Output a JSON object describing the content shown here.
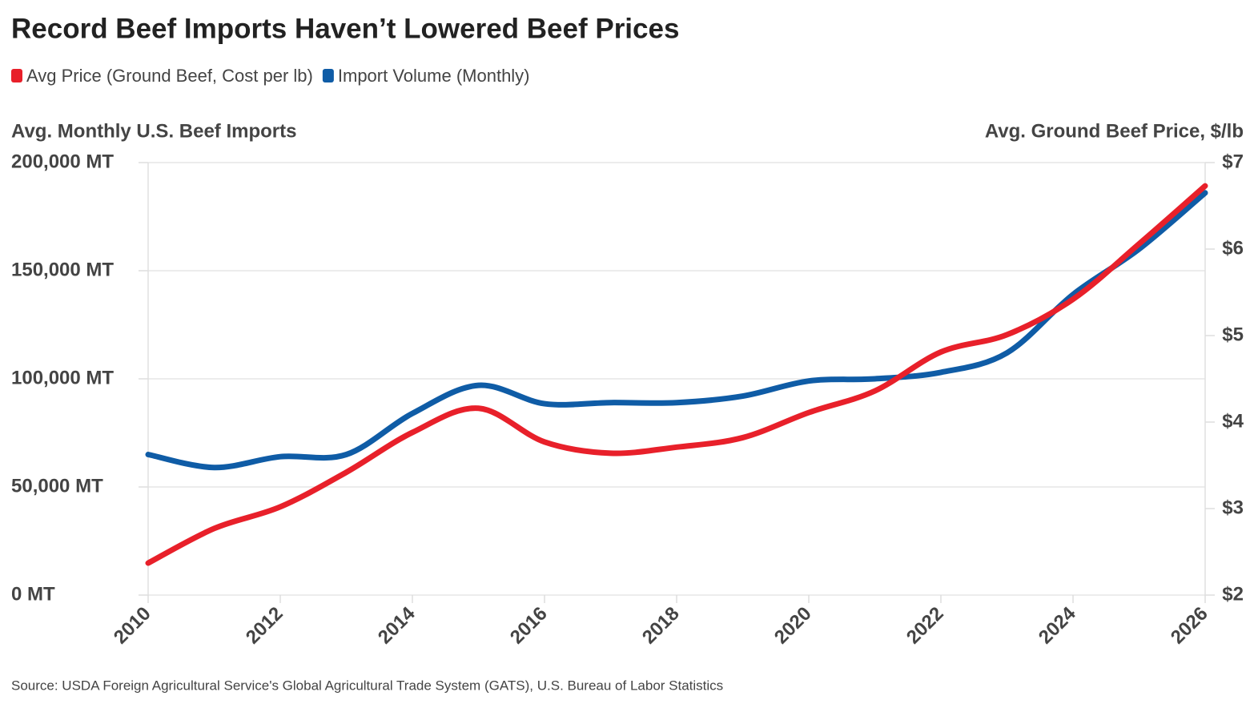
{
  "chart_data": {
    "type": "line",
    "title": "Record Beef Imports Haven’t Lowered Beef Prices",
    "y_label": "Avg. Monthly U.S. Beef Imports",
    "y2_label": "Avg. Ground Beef Price, $/lb",
    "source": "Source: USDA Foreign Agricultural Service's Global Agricultural Trade System (GATS), U.S. Bureau of Labor Statistics",
    "x": [
      2010,
      2011,
      2012,
      2013,
      2014,
      2015,
      2016,
      2017,
      2018,
      2019,
      2020,
      2021,
      2022,
      2023,
      2024,
      2025,
      2026
    ],
    "series": [
      {
        "name": "Avg Price (Ground Beef, Cost per lb)",
        "color": "#e8202a",
        "axis": "y2",
        "values": [
          2.37,
          2.77,
          3.02,
          3.42,
          3.88,
          4.16,
          3.77,
          3.64,
          3.71,
          3.82,
          4.11,
          4.36,
          4.81,
          5.01,
          5.42,
          6.06,
          6.73
        ]
      },
      {
        "name": "Import Volume (Monthly)",
        "color": "#0f5ca6",
        "values": [
          65000,
          59000,
          64000,
          65000,
          84000,
          97000,
          88500,
          89000,
          89000,
          92000,
          99000,
          100000,
          103000,
          112000,
          139000,
          160000,
          186000
        ]
      }
    ],
    "xlim": [
      2010,
      2026
    ],
    "xticks": [
      2010,
      2012,
      2014,
      2016,
      2018,
      2020,
      2022,
      2024,
      2026
    ],
    "ylim": [
      0,
      200000
    ],
    "yticks": [
      {
        "value": 0,
        "label": "0 MT"
      },
      {
        "value": 50000,
        "label": "50,000 MT"
      },
      {
        "value": 100000,
        "label": "100,000 MT"
      },
      {
        "value": 150000,
        "label": "150,000 MT"
      },
      {
        "value": 200000,
        "label": "200,000 MT"
      }
    ],
    "y2lim": [
      2,
      7
    ],
    "y2ticks": [
      {
        "value": 2,
        "label": "$2"
      },
      {
        "value": 3,
        "label": "$3"
      },
      {
        "value": 4,
        "label": "$4"
      },
      {
        "value": 5,
        "label": "$5"
      },
      {
        "value": 6,
        "label": "$6"
      },
      {
        "value": 7,
        "label": "$7"
      }
    ],
    "grid": true
  }
}
